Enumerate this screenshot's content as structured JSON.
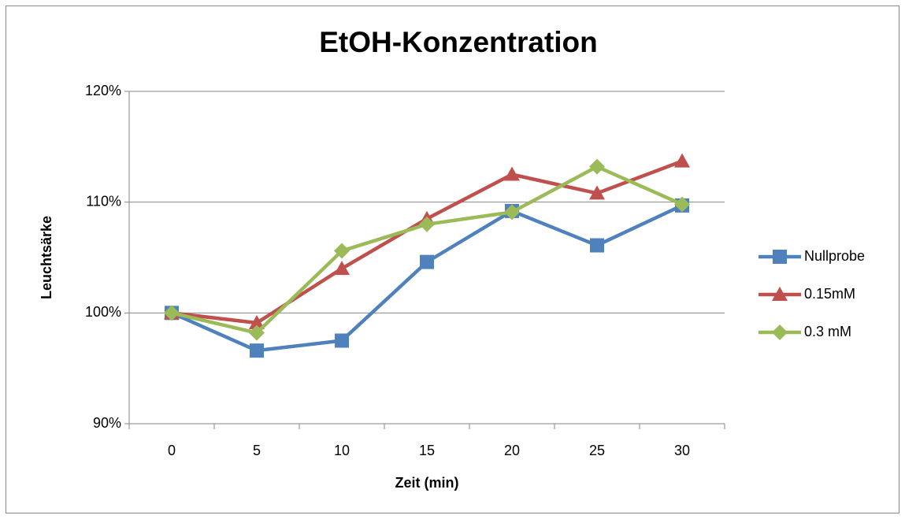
{
  "chart_data": {
    "type": "line",
    "title": "EtOH-Konzentration",
    "xlabel": "Zeit (min)",
    "ylabel": "Leuchtsärke",
    "categories": [
      "0",
      "5",
      "10",
      "15",
      "20",
      "25",
      "30"
    ],
    "series": [
      {
        "name": "Nullprobe",
        "color": "#4f81bd",
        "marker": "square",
        "values": [
          100,
          96.6,
          97.5,
          104.6,
          109.2,
          106.1,
          109.7
        ]
      },
      {
        "name": "0.15mM",
        "color": "#c0504d",
        "marker": "triangle",
        "values": [
          100,
          99.1,
          104.0,
          108.5,
          112.5,
          110.8,
          113.7
        ]
      },
      {
        "name": "0.3 mM",
        "color": "#9bbb59",
        "marker": "diamond",
        "values": [
          100,
          98.2,
          105.6,
          108.0,
          109.1,
          113.2,
          109.8
        ]
      }
    ],
    "ylim": [
      90,
      120
    ],
    "yticks": [
      {
        "value": 90,
        "label": "90%"
      },
      {
        "value": 100,
        "label": "100%"
      },
      {
        "value": 110,
        "label": "110%"
      },
      {
        "value": 120,
        "label": "120%"
      }
    ],
    "grid": true,
    "legend": "right"
  }
}
